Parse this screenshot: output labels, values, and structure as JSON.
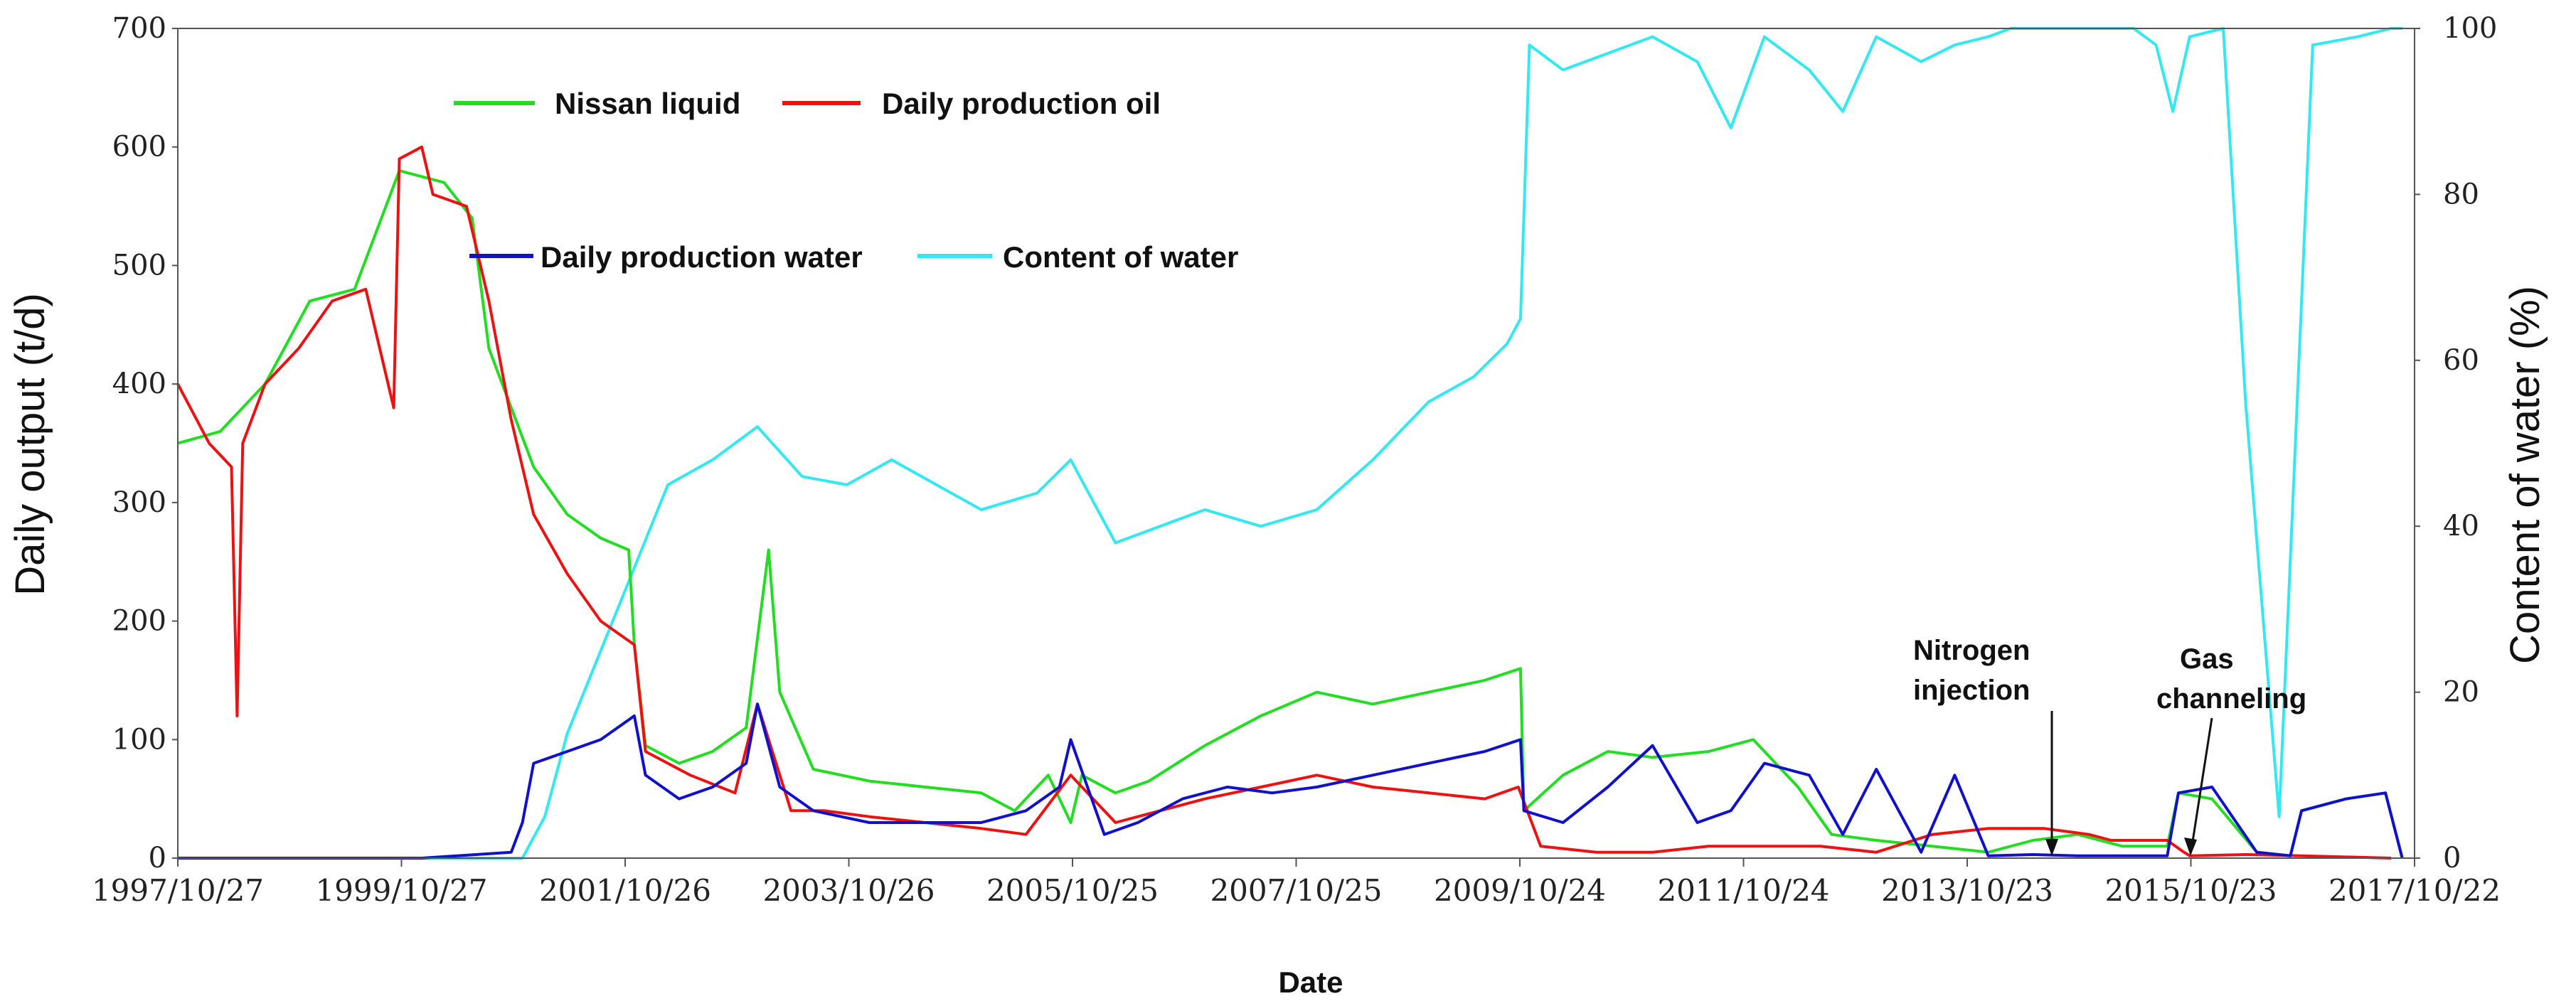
{
  "chart_data": {
    "type": "line",
    "title": "",
    "xlabel": "Date",
    "ylabel": "Daily output (t/d)",
    "y2label": "Content of water (%)",
    "xlim": [
      1997.82,
      2017.81
    ],
    "ylim": [
      0,
      700
    ],
    "y2lim": [
      0,
      100
    ],
    "x_tick_labels": [
      "1997/10/27",
      "1999/10/27",
      "2001/10/26",
      "2003/10/26",
      "2005/10/25",
      "2007/10/25",
      "2009/10/24",
      "2011/10/24",
      "2013/10/23",
      "2015/10/23",
      "2017/10/22"
    ],
    "y_ticks": [
      0,
      100,
      200,
      300,
      400,
      500,
      600,
      700
    ],
    "y2_ticks": [
      0,
      20,
      40,
      60,
      80,
      100
    ],
    "legend_placement": "top-left",
    "series": [
      {
        "name": "Nissan liquid",
        "axis": "left",
        "color": "#22dd22",
        "x": [
          1997.82,
          1998.2,
          1998.6,
          1999.0,
          1999.4,
          1999.8,
          2000.2,
          2000.45,
          2000.6,
          2000.8,
          2001.0,
          2001.3,
          2001.6,
          2001.85,
          2001.9,
          2002.0,
          2002.3,
          2002.6,
          2002.9,
          2003.1,
          2003.2,
          2003.5,
          2004.0,
          2004.5,
          2005.0,
          2005.3,
          2005.6,
          2005.8,
          2005.9,
          2006.2,
          2006.5,
          2007.0,
          2007.5,
          2008.0,
          2008.5,
          2009.0,
          2009.5,
          2009.82,
          2009.85,
          2010.2,
          2010.6,
          2011.0,
          2011.5,
          2011.9,
          2012.3,
          2012.6,
          2013.0,
          2013.5,
          2014.0,
          2014.4,
          2014.8,
          2015.2,
          2015.6,
          2015.7,
          2016.0,
          2016.4,
          2016.7,
          2016.8,
          2017.2,
          2017.55,
          2017.7
        ],
        "values": [
          350,
          360,
          400,
          470,
          480,
          580,
          570,
          540,
          430,
          380,
          330,
          290,
          270,
          260,
          180,
          95,
          80,
          90,
          110,
          260,
          140,
          75,
          65,
          60,
          55,
          40,
          70,
          30,
          70,
          55,
          65,
          95,
          120,
          140,
          130,
          140,
          150,
          160,
          40,
          70,
          90,
          85,
          90,
          100,
          60,
          20,
          15,
          10,
          5,
          15,
          20,
          10,
          10,
          55,
          50,
          5,
          2,
          40,
          50,
          55,
          0
        ]
      },
      {
        "name": "Daily production oil",
        "axis": "left",
        "color": "#ee1111",
        "x": [
          1997.82,
          1998.1,
          1998.3,
          1998.35,
          1998.4,
          1998.6,
          1998.9,
          1999.2,
          1999.5,
          1999.75,
          1999.8,
          2000.0,
          2000.1,
          2000.4,
          2000.6,
          2000.8,
          2001.0,
          2001.3,
          2001.6,
          2001.9,
          2002.0,
          2002.4,
          2002.8,
          2003.0,
          2003.3,
          2003.6,
          2004.0,
          2004.5,
          2005.0,
          2005.4,
          2005.8,
          2006.2,
          2006.6,
          2007.0,
          2007.5,
          2008.0,
          2008.5,
          2009.0,
          2009.5,
          2009.8,
          2010.0,
          2010.5,
          2011.0,
          2011.5,
          2012.0,
          2012.5,
          2013.0,
          2013.5,
          2014.0,
          2014.5,
          2014.9,
          2015.1,
          2015.6,
          2015.75,
          2015.8,
          2016.3,
          2016.8,
          2017.6
        ],
        "values": [
          400,
          350,
          330,
          120,
          350,
          400,
          430,
          470,
          480,
          380,
          590,
          600,
          560,
          550,
          470,
          370,
          290,
          240,
          200,
          180,
          90,
          70,
          55,
          130,
          40,
          40,
          35,
          30,
          25,
          20,
          70,
          30,
          40,
          50,
          60,
          70,
          60,
          55,
          50,
          60,
          10,
          5,
          5,
          10,
          10,
          10,
          5,
          20,
          25,
          25,
          20,
          15,
          15,
          5,
          2,
          3,
          2,
          0
        ]
      },
      {
        "name": "Daily production water",
        "axis": "left",
        "color": "#1111cc",
        "x": [
          1997.82,
          1999.0,
          2000.0,
          2000.8,
          2000.9,
          2001.0,
          2001.3,
          2001.6,
          2001.9,
          2002.0,
          2002.3,
          2002.6,
          2002.9,
          2003.0,
          2003.2,
          2003.5,
          2004.0,
          2004.5,
          2005.0,
          2005.4,
          2005.7,
          2005.8,
          2006.1,
          2006.4,
          2006.8,
          2007.2,
          2007.6,
          2008.0,
          2008.5,
          2009.0,
          2009.5,
          2009.82,
          2009.85,
          2010.2,
          2010.6,
          2011.0,
          2011.4,
          2011.7,
          2012.0,
          2012.4,
          2012.7,
          2013.0,
          2013.4,
          2013.7,
          2014.0,
          2014.4,
          2014.8,
          2015.2,
          2015.6,
          2015.7,
          2016.0,
          2016.4,
          2016.7,
          2016.8,
          2017.2,
          2017.55,
          2017.7
        ],
        "values": [
          0,
          0,
          0,
          5,
          30,
          80,
          90,
          100,
          120,
          70,
          50,
          60,
          80,
          130,
          60,
          40,
          30,
          30,
          30,
          40,
          60,
          100,
          20,
          30,
          50,
          60,
          55,
          60,
          70,
          80,
          90,
          100,
          40,
          30,
          60,
          95,
          30,
          40,
          80,
          70,
          20,
          75,
          5,
          70,
          2,
          3,
          2,
          2,
          2,
          55,
          60,
          5,
          2,
          40,
          50,
          55,
          0
        ]
      },
      {
        "name": "Content of water",
        "axis": "right",
        "color": "#33e8f0",
        "x": [
          1997.82,
          2000.9,
          2001.1,
          2001.3,
          2001.6,
          2001.9,
          2002.2,
          2002.6,
          2003.0,
          2003.4,
          2003.8,
          2004.2,
          2004.6,
          2005.0,
          2005.5,
          2005.8,
          2006.2,
          2006.6,
          2007.0,
          2007.5,
          2008.0,
          2008.5,
          2009.0,
          2009.4,
          2009.7,
          2009.82,
          2009.9,
          2010.2,
          2010.6,
          2011.0,
          2011.4,
          2011.7,
          2012.0,
          2012.4,
          2012.7,
          2013.0,
          2013.4,
          2013.7,
          2014.0,
          2014.2,
          2014.6,
          2015.0,
          2015.3,
          2015.5,
          2015.65,
          2015.8,
          2016.1,
          2016.3,
          2016.6,
          2016.9,
          2017.3,
          2017.6,
          2017.7
        ],
        "values": [
          0,
          0,
          5,
          15,
          25,
          35,
          45,
          48,
          52,
          46,
          45,
          48,
          45,
          42,
          44,
          48,
          38,
          40,
          42,
          40,
          42,
          48,
          55,
          58,
          62,
          65,
          98,
          95,
          97,
          99,
          96,
          88,
          99,
          95,
          90,
          99,
          96,
          98,
          99,
          100,
          100,
          100,
          100,
          98,
          90,
          99,
          100,
          55,
          5,
          98,
          99,
          100,
          100
        ]
      }
    ],
    "annotations": [
      {
        "text": [
          "Nitrogen",
          "injection"
        ],
        "x": 2014.3,
        "y": 0
      },
      {
        "text": [
          "Gas",
          "channeling"
        ],
        "x": 2015.75,
        "y": 0
      }
    ]
  }
}
